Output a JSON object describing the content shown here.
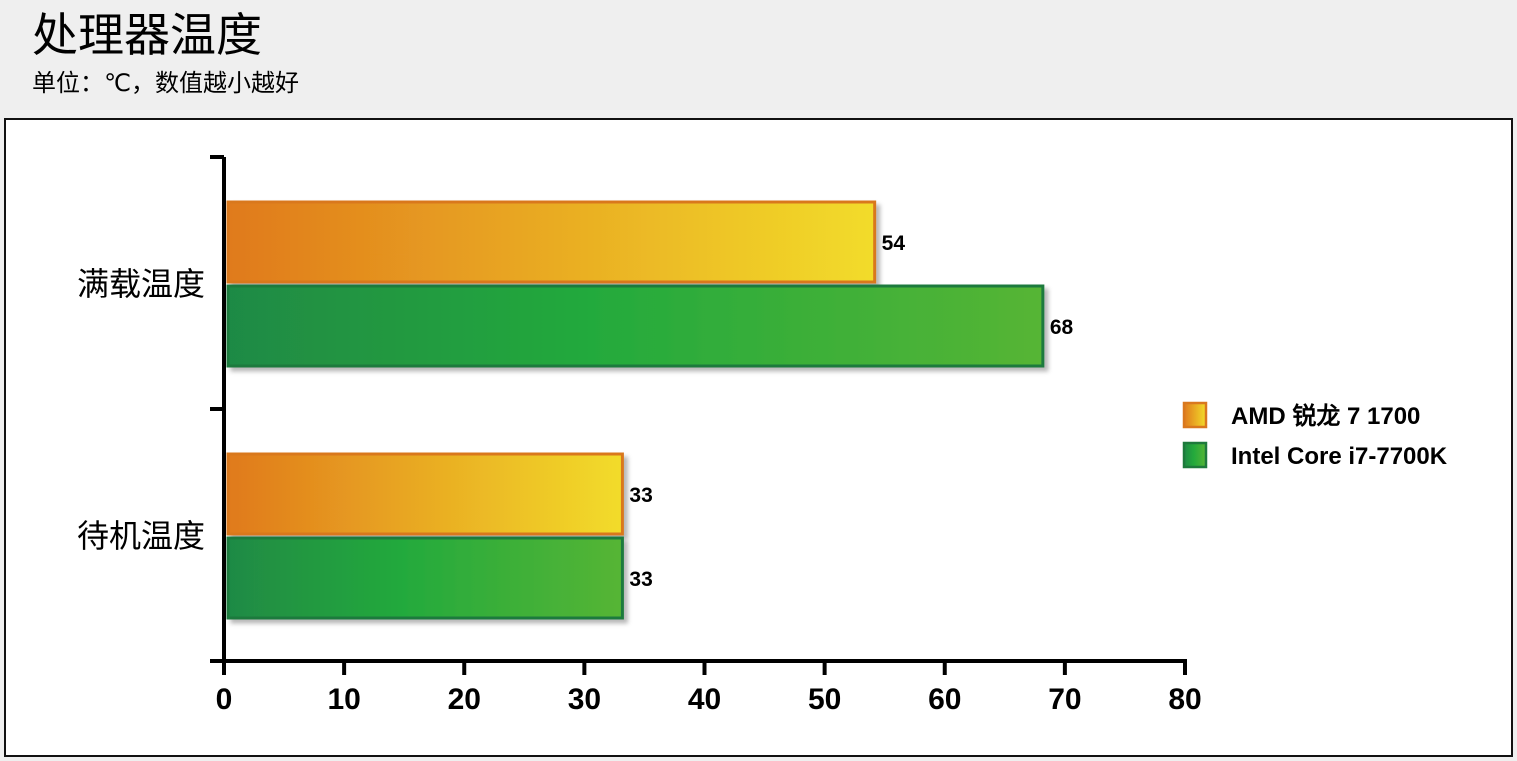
{
  "header": {
    "title": "处理器温度",
    "subtitle": "单位：℃，数值越小越好"
  },
  "chart_data": {
    "type": "bar",
    "orientation": "horizontal",
    "title": "处理器温度",
    "subtitle": "单位：℃，数值越小越好",
    "categories": [
      "满载温度",
      "待机温度"
    ],
    "series": [
      {
        "name": "AMD 锐龙 7 1700",
        "values": [
          54,
          33
        ],
        "color_start": "#e07a1c",
        "color_end": "#f2dc2a",
        "border": "#d9781e"
      },
      {
        "name": "Intel Core i7-7700K",
        "values": [
          68,
          33
        ],
        "color_start": "#1f8a45",
        "color_mid": "#24aa3c",
        "color_end": "#56b535",
        "border": "#1e7a3c"
      }
    ],
    "xlim": [
      0,
      80
    ],
    "xticks": [
      0,
      10,
      20,
      30,
      40,
      50,
      60,
      70,
      80
    ],
    "grid": false,
    "data_labels": true,
    "legend_position": "right"
  }
}
